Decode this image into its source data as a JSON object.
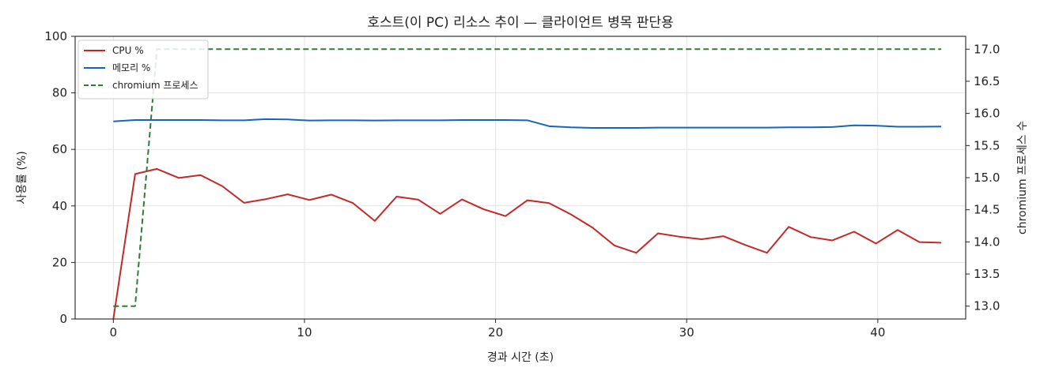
{
  "chart_data": {
    "type": "line",
    "title": "호스트(이 PC) 리소스 추이 — 클라이언트 병목 판단용",
    "xlabel": "경과 시간 (초)",
    "ylabel": "사용률 (%)",
    "y2label": "chromium 프로세스 수",
    "xlim": [
      -2,
      44.6
    ],
    "ylim": [
      0,
      100
    ],
    "y2lim": [
      12.8,
      17.2
    ],
    "xticks": [
      0,
      10,
      20,
      30,
      40
    ],
    "yticks": [
      0,
      20,
      40,
      60,
      80,
      100
    ],
    "y2ticks": [
      13.0,
      13.5,
      14.0,
      14.5,
      15.0,
      15.5,
      16.0,
      16.5,
      17.0
    ],
    "y2tick_labels": [
      "13.0",
      "13.5",
      "14.0",
      "14.5",
      "15.0",
      "15.5",
      "16.0",
      "16.5",
      "17.0"
    ],
    "grid": true,
    "legend_position": "top-left",
    "x": [
      0,
      1.14,
      2.28,
      3.42,
      4.56,
      5.7,
      6.84,
      7.98,
      9.12,
      10.26,
      11.4,
      12.54,
      13.68,
      14.82,
      15.96,
      17.1,
      18.24,
      19.38,
      20.52,
      21.66,
      22.8,
      23.94,
      25.08,
      26.22,
      27.36,
      28.5,
      29.64,
      30.78,
      31.92,
      33.06,
      34.2,
      35.34,
      36.48,
      37.62,
      38.76,
      39.9,
      41.04,
      42.18,
      43.32
    ],
    "series": [
      {
        "name": "CPU %",
        "axis": "left",
        "color": "#c62828",
        "style": "solid",
        "values": [
          0,
          51.3,
          53.1,
          49.9,
          50.9,
          47.0,
          41.1,
          42.4,
          44.1,
          42.1,
          44.0,
          41.0,
          34.7,
          43.3,
          42.2,
          37.2,
          42.3,
          38.8,
          36.4,
          42.0,
          41.0,
          37.0,
          32.3,
          26.0,
          23.4,
          30.3,
          29.1,
          28.2,
          29.3,
          26.2,
          23.4,
          32.6,
          29.0,
          27.8,
          30.9,
          26.7,
          31.5,
          27.2,
          27.0
        ]
      },
      {
        "name": "메모리 %",
        "axis": "left",
        "color": "#1565c0",
        "style": "solid",
        "values": [
          69.9,
          70.4,
          70.4,
          70.4,
          70.4,
          70.3,
          70.3,
          70.7,
          70.6,
          70.2,
          70.3,
          70.3,
          70.2,
          70.3,
          70.3,
          70.3,
          70.4,
          70.4,
          70.4,
          70.3,
          68.2,
          67.8,
          67.6,
          67.6,
          67.6,
          67.7,
          67.7,
          67.7,
          67.7,
          67.7,
          67.7,
          67.8,
          67.8,
          67.9,
          68.5,
          68.4,
          68.0,
          68.0,
          68.1
        ]
      },
      {
        "name": "chromium 프로세스",
        "axis": "right",
        "color": "#2e7d32",
        "style": "dashed",
        "values": [
          13,
          13,
          17,
          17,
          17,
          17,
          17,
          17,
          17,
          17,
          17,
          17,
          17,
          17,
          17,
          17,
          17,
          17,
          17,
          17,
          17,
          17,
          17,
          17,
          17,
          17,
          17,
          17,
          17,
          17,
          17,
          17,
          17,
          17,
          17,
          17,
          17,
          17,
          17
        ]
      }
    ]
  }
}
